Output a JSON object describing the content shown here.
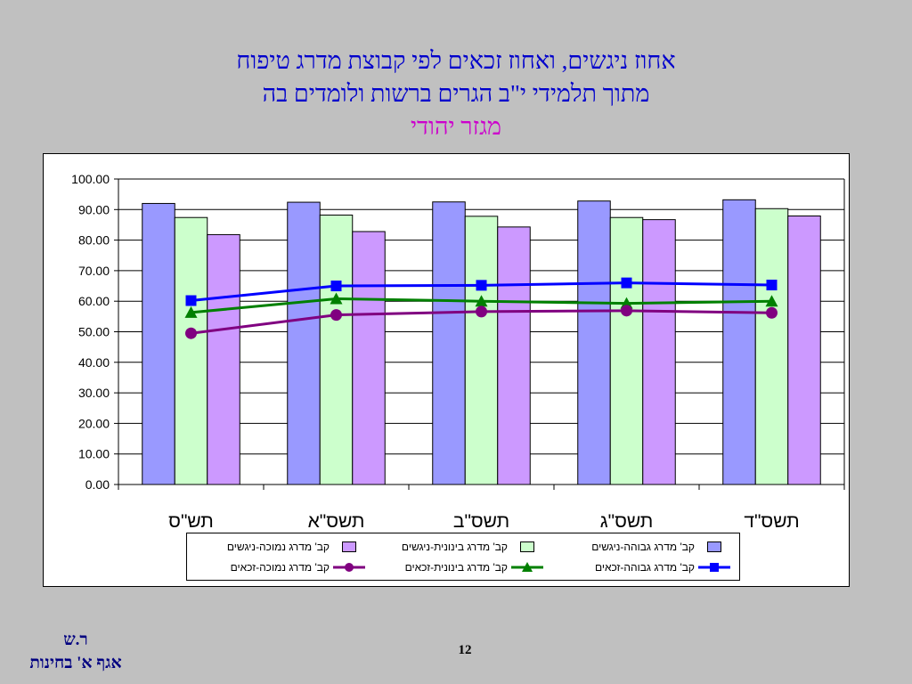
{
  "slide": {
    "title_line1": "אחוז ניגשים, ואחוז זכאים לפי קבוצת מדרג טיפוח",
    "title_line2": "מתוך תלמידי י\"ב הגרים ברשות ולומדים בה",
    "subtitle": "מגזר יהודי",
    "footer_line1": "ר.ש",
    "footer_line2": "אגף א' בחינות",
    "page_number": "12"
  },
  "chart_data": {
    "type": "bar",
    "categories": [
      "תש\"ס",
      "תשס\"א",
      "תשס\"ב",
      "תשס\"ג",
      "תשס\"ד"
    ],
    "ylim": [
      0,
      100
    ],
    "yticks": [
      "0.00",
      "10.00",
      "20.00",
      "30.00",
      "40.00",
      "50.00",
      "60.00",
      "70.00",
      "80.00",
      "90.00",
      "100.00"
    ],
    "grid": true,
    "legend_position": "bottom",
    "bar_series": [
      {
        "name": "קב' מדרג גבוהה-ניגשים",
        "color": "#9999ff",
        "values": [
          92.0,
          92.4,
          92.5,
          92.8,
          93.2
        ]
      },
      {
        "name": "קב' מדרג בינונית-ניגשים",
        "color": "#ccffcc",
        "values": [
          87.4,
          88.2,
          87.8,
          87.4,
          90.3
        ]
      },
      {
        "name": "קב' מדרג נמוכה-ניגשים",
        "color": "#cc99ff",
        "values": [
          81.8,
          82.8,
          84.3,
          86.7,
          87.9
        ]
      }
    ],
    "line_series": [
      {
        "name": "קב' מדרג גבוהה-זכאים",
        "color": "#0000ff",
        "marker": "square",
        "values": [
          60.2,
          65.0,
          65.2,
          66.0,
          65.3
        ]
      },
      {
        "name": "קב' מדרג בינונית-זכאים",
        "color": "#008000",
        "marker": "triangle",
        "values": [
          56.3,
          60.8,
          60.0,
          59.3,
          60.0
        ]
      },
      {
        "name": "קב' מדרג נמוכה-זכאים",
        "color": "#800080",
        "marker": "circle",
        "values": [
          49.5,
          55.5,
          56.6,
          56.9,
          56.2
        ]
      }
    ]
  }
}
